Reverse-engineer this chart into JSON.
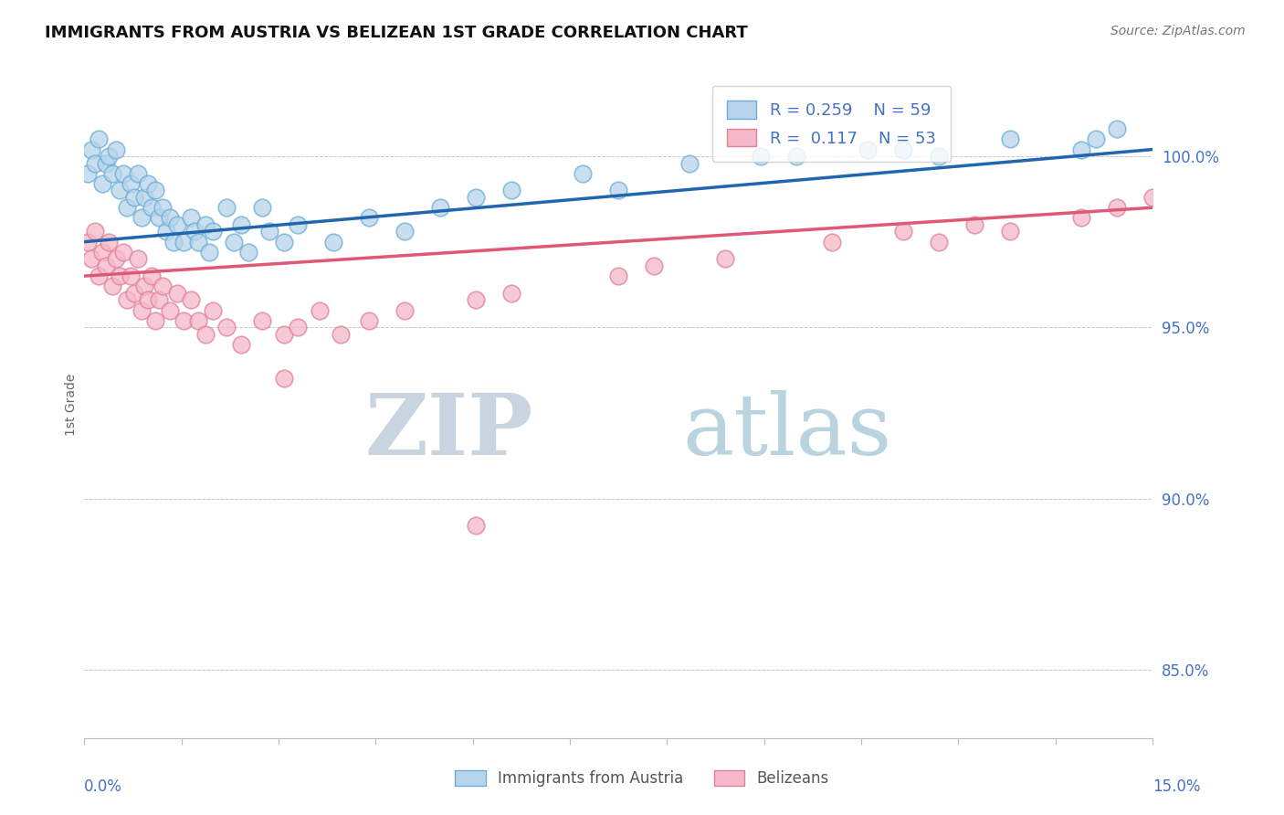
{
  "title": "IMMIGRANTS FROM AUSTRIA VS BELIZEAN 1ST GRADE CORRELATION CHART",
  "source": "Source: ZipAtlas.com",
  "ylabel": "1st Grade",
  "ytick_values": [
    85.0,
    90.0,
    95.0,
    100.0
  ],
  "xmin": 0.0,
  "xmax": 15.0,
  "ymin": 83.0,
  "ymax": 102.5,
  "legend_R_blue": "R = 0.259",
  "legend_N_blue": "N = 59",
  "legend_R_pink": "R =  0.117",
  "legend_N_pink": "N = 53",
  "blue_face_color": "#b8d4ea",
  "blue_edge_color": "#6baed6",
  "pink_face_color": "#f5b8c8",
  "pink_edge_color": "#e0819a",
  "blue_line_color": "#2166ac",
  "pink_line_color": "#e05878",
  "ytick_color": "#4472c4",
  "xtick_color": "#4472c4",
  "blue_scatter_x": [
    0.05,
    0.1,
    0.15,
    0.2,
    0.25,
    0.3,
    0.35,
    0.4,
    0.45,
    0.5,
    0.55,
    0.6,
    0.65,
    0.7,
    0.75,
    0.8,
    0.85,
    0.9,
    0.95,
    1.0,
    1.05,
    1.1,
    1.15,
    1.2,
    1.25,
    1.3,
    1.4,
    1.5,
    1.55,
    1.6,
    1.7,
    1.75,
    1.8,
    2.0,
    2.1,
    2.2,
    2.3,
    2.5,
    2.6,
    2.8,
    3.0,
    3.5,
    4.0,
    4.5,
    5.0,
    5.5,
    6.0,
    7.0,
    8.5,
    9.5,
    11.0,
    12.0,
    13.0,
    14.0,
    14.2,
    14.5,
    7.5,
    10.0,
    11.5
  ],
  "blue_scatter_y": [
    99.5,
    100.2,
    99.8,
    100.5,
    99.2,
    99.8,
    100.0,
    99.5,
    100.2,
    99.0,
    99.5,
    98.5,
    99.2,
    98.8,
    99.5,
    98.2,
    98.8,
    99.2,
    98.5,
    99.0,
    98.2,
    98.5,
    97.8,
    98.2,
    97.5,
    98.0,
    97.5,
    98.2,
    97.8,
    97.5,
    98.0,
    97.2,
    97.8,
    98.5,
    97.5,
    98.0,
    97.2,
    98.5,
    97.8,
    97.5,
    98.0,
    97.5,
    98.2,
    97.8,
    98.5,
    98.8,
    99.0,
    99.5,
    99.8,
    100.0,
    100.2,
    100.0,
    100.5,
    100.2,
    100.5,
    100.8,
    99.0,
    100.0,
    100.2
  ],
  "pink_scatter_x": [
    0.05,
    0.1,
    0.15,
    0.2,
    0.25,
    0.3,
    0.35,
    0.4,
    0.45,
    0.5,
    0.55,
    0.6,
    0.65,
    0.7,
    0.75,
    0.8,
    0.85,
    0.9,
    0.95,
    1.0,
    1.05,
    1.1,
    1.2,
    1.3,
    1.4,
    1.5,
    1.6,
    1.7,
    1.8,
    2.0,
    2.2,
    2.5,
    2.8,
    3.0,
    3.3,
    3.6,
    4.0,
    4.5,
    5.5,
    6.0,
    7.5,
    8.0,
    9.0,
    10.5,
    11.5,
    12.0,
    12.5,
    13.0,
    14.0,
    14.5,
    15.0,
    5.5,
    2.8
  ],
  "pink_scatter_y": [
    97.5,
    97.0,
    97.8,
    96.5,
    97.2,
    96.8,
    97.5,
    96.2,
    97.0,
    96.5,
    97.2,
    95.8,
    96.5,
    96.0,
    97.0,
    95.5,
    96.2,
    95.8,
    96.5,
    95.2,
    95.8,
    96.2,
    95.5,
    96.0,
    95.2,
    95.8,
    95.2,
    94.8,
    95.5,
    95.0,
    94.5,
    95.2,
    94.8,
    95.0,
    95.5,
    94.8,
    95.2,
    95.5,
    95.8,
    96.0,
    96.5,
    96.8,
    97.0,
    97.5,
    97.8,
    97.5,
    98.0,
    97.8,
    98.2,
    98.5,
    98.8,
    89.2,
    93.5
  ]
}
